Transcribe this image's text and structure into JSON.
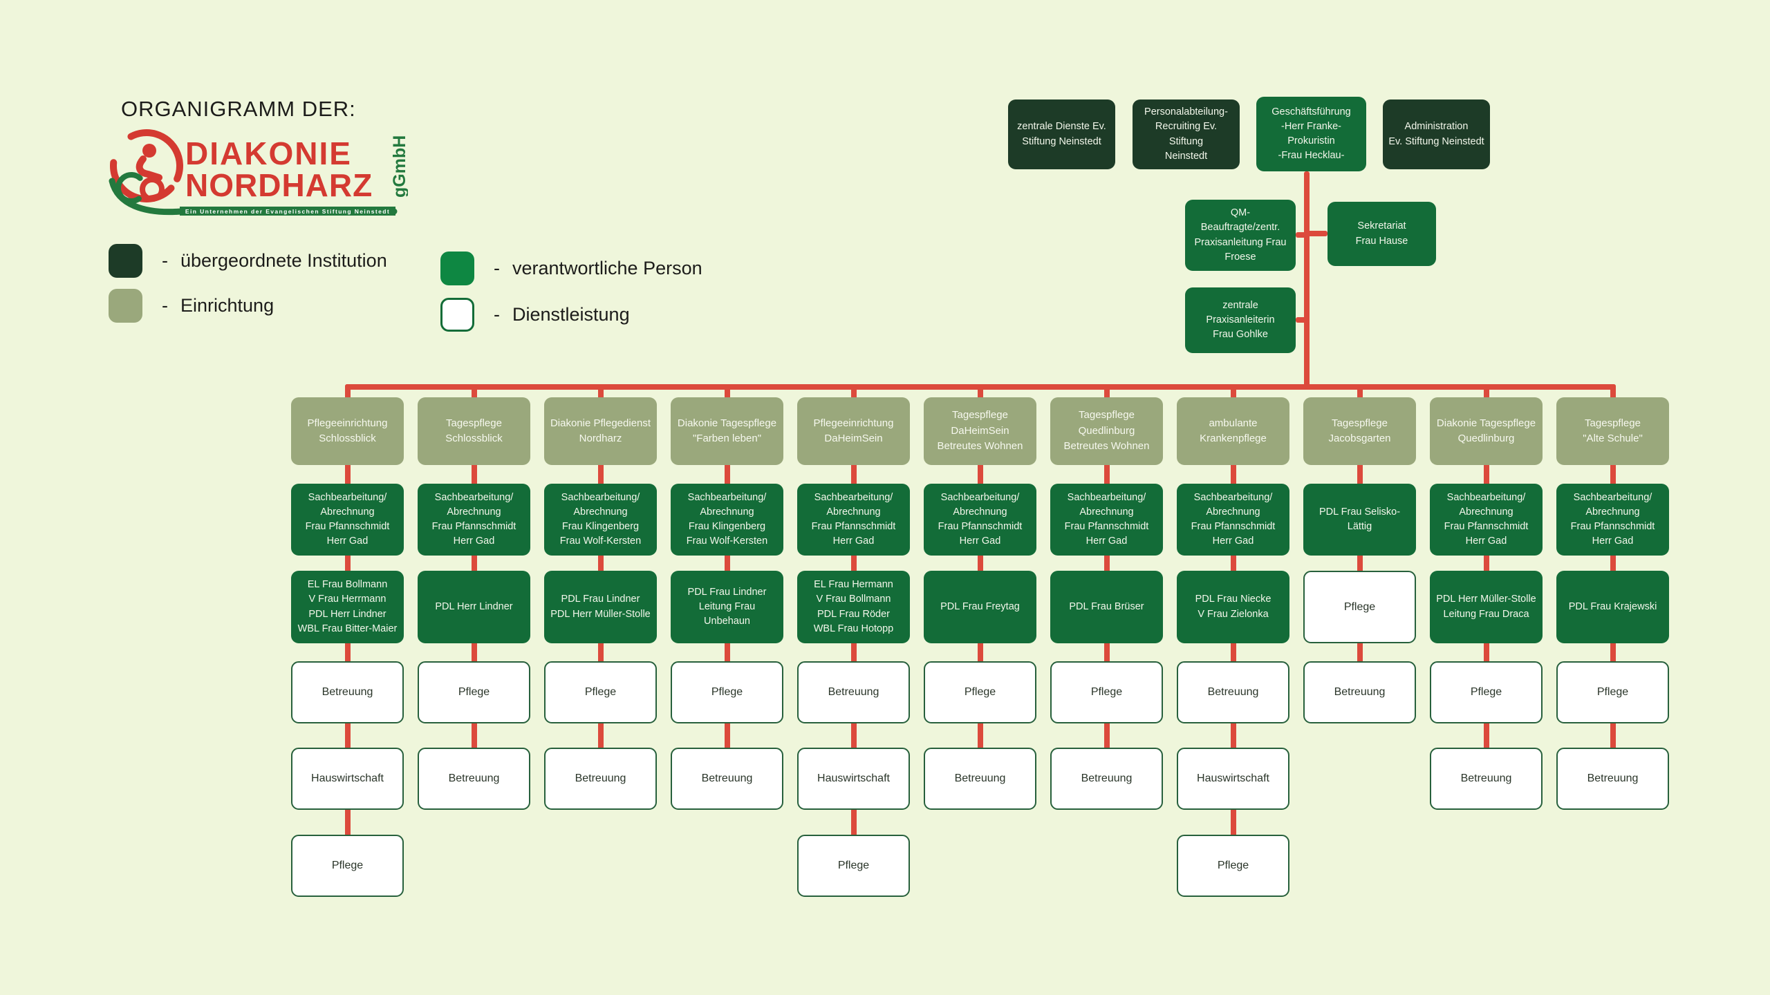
{
  "colors": {
    "background": "#eff6db",
    "institution_green": "#1d3b27",
    "person_green": "#136c38",
    "legend_person_green": "#0e8742",
    "einrichtung_olive": "#9aa87c",
    "service_border_green": "#27603c",
    "connector_red": "#dc4a3c",
    "logo_red": "#d43a31",
    "logo_green": "#23793e"
  },
  "page": {
    "title": "ORGANIGRAMM DER:"
  },
  "logo": {
    "line1": "DIAKONIE",
    "line2": "NORDHARZ",
    "suffix": "gGmbH",
    "tagline": "Ein Unternehmen der Evangelischen Stiftung Neinstedt"
  },
  "legend": {
    "separator": "-",
    "items": [
      {
        "label": "übergeordnete Institution",
        "type": "institution"
      },
      {
        "label": "Einrichtung",
        "type": "einrichtung"
      },
      {
        "label": "verantwortliche Person",
        "type": "person"
      },
      {
        "label": "Dienstleistung",
        "type": "service"
      }
    ]
  },
  "top_row": [
    {
      "label": "zentrale Dienste Ev.\nStiftung Neinstedt",
      "type": "institution"
    },
    {
      "label": "Personalabteilung-\nRecruiting Ev. Stiftung\nNeinstedt",
      "type": "institution"
    },
    {
      "label": "Geschäftsführung\n-Herr Franke-\nProkuristin\n-Frau Hecklau-",
      "type": "person-bright"
    },
    {
      "label": "Administration\nEv. Stiftung Neinstedt",
      "type": "institution"
    }
  ],
  "middle": {
    "qm": "QM- Beauftragte/zentr.\nPraxisanleitung Frau\nFroese",
    "sekretariat": "Sekretariat\nFrau Hause",
    "praxisanleiterin": "zentrale Praxisanleiterin\nFrau Gohlke"
  },
  "columns": [
    {
      "header": "Pflegeeinrichtung\nSchlossblick",
      "boxes": [
        {
          "slot": 2,
          "type": "person",
          "label": "Sachbearbeitung/\nAbrechnung\nFrau Pfannschmidt\nHerr Gad"
        },
        {
          "slot": 3,
          "type": "person",
          "label": "EL Frau Bollmann\nV Frau Herrmann\nPDL Herr Lindner\nWBL Frau Bitter-Maier"
        },
        {
          "slot": 4,
          "type": "service",
          "label": "Betreuung"
        },
        {
          "slot": 5,
          "type": "service",
          "label": "Hauswirtschaft"
        },
        {
          "slot": 6,
          "type": "service",
          "label": "Pflege"
        }
      ]
    },
    {
      "header": "Tagespflege\nSchlossblick",
      "boxes": [
        {
          "slot": 2,
          "type": "person",
          "label": "Sachbearbeitung/\nAbrechnung\nFrau Pfannschmidt\nHerr Gad"
        },
        {
          "slot": 3,
          "type": "person",
          "label": "PDL Herr Lindner"
        },
        {
          "slot": 4,
          "type": "service",
          "label": "Pflege"
        },
        {
          "slot": 5,
          "type": "service",
          "label": "Betreuung"
        }
      ]
    },
    {
      "header": "Diakonie Pflegedienst\nNordharz",
      "boxes": [
        {
          "slot": 2,
          "type": "person",
          "label": "Sachbearbeitung/\nAbrechnung\nFrau Klingenberg\nFrau Wolf-Kersten"
        },
        {
          "slot": 3,
          "type": "person",
          "label": "PDL Frau Lindner\nPDL Herr Müller-Stolle"
        },
        {
          "slot": 4,
          "type": "service",
          "label": "Pflege"
        },
        {
          "slot": 5,
          "type": "service",
          "label": "Betreuung"
        }
      ]
    },
    {
      "header": "Diakonie Tagespflege\n\"Farben leben\"",
      "boxes": [
        {
          "slot": 2,
          "type": "person",
          "label": "Sachbearbeitung/\nAbrechnung\nFrau Klingenberg\nFrau Wolf-Kersten"
        },
        {
          "slot": 3,
          "type": "person",
          "label": "PDL Frau Lindner\nLeitung Frau Unbehaun"
        },
        {
          "slot": 4,
          "type": "service",
          "label": "Pflege"
        },
        {
          "slot": 5,
          "type": "service",
          "label": "Betreuung"
        }
      ]
    },
    {
      "header": "Pflegeeinrichtung\nDaHeimSein",
      "boxes": [
        {
          "slot": 2,
          "type": "person",
          "label": "Sachbearbeitung/\nAbrechnung\nFrau Pfannschmidt\nHerr Gad"
        },
        {
          "slot": 3,
          "type": "person",
          "label": "EL Frau Hermann\nV Frau Bollmann\nPDL Frau Röder\nWBL Frau Hotopp"
        },
        {
          "slot": 4,
          "type": "service",
          "label": "Betreuung"
        },
        {
          "slot": 5,
          "type": "service",
          "label": "Hauswirtschaft"
        },
        {
          "slot": 6,
          "type": "service",
          "label": "Pflege"
        }
      ]
    },
    {
      "header": "Tagespflege\nDaHeimSein\nBetreutes Wohnen",
      "boxes": [
        {
          "slot": 2,
          "type": "person",
          "label": "Sachbearbeitung/\nAbrechnung\nFrau Pfannschmidt\nHerr Gad"
        },
        {
          "slot": 3,
          "type": "person",
          "label": "PDL Frau Freytag"
        },
        {
          "slot": 4,
          "type": "service",
          "label": "Pflege"
        },
        {
          "slot": 5,
          "type": "service",
          "label": "Betreuung"
        }
      ]
    },
    {
      "header": "Tagespflege\nQuedlinburg\nBetreutes Wohnen",
      "boxes": [
        {
          "slot": 2,
          "type": "person",
          "label": "Sachbearbeitung/\nAbrechnung\nFrau Pfannschmidt\nHerr Gad"
        },
        {
          "slot": 3,
          "type": "person",
          "label": "PDL Frau Brüser"
        },
        {
          "slot": 4,
          "type": "service",
          "label": "Pflege"
        },
        {
          "slot": 5,
          "type": "service",
          "label": "Betreuung"
        }
      ]
    },
    {
      "header": "ambulante\nKrankenpflege",
      "boxes": [
        {
          "slot": 2,
          "type": "person",
          "label": "Sachbearbeitung/\nAbrechnung\nFrau Pfannschmidt\nHerr Gad"
        },
        {
          "slot": 3,
          "type": "person",
          "label": "PDL Frau Niecke\nV Frau Zielonka"
        },
        {
          "slot": 4,
          "type": "service",
          "label": "Betreuung"
        },
        {
          "slot": 5,
          "type": "service",
          "label": "Hauswirtschaft"
        },
        {
          "slot": 6,
          "type": "service",
          "label": "Pflege"
        }
      ]
    },
    {
      "header": "Tagespflege\nJacobsgarten",
      "boxes": [
        {
          "slot": 2,
          "type": "person",
          "label": "PDL Frau Selisko-Lättig"
        },
        {
          "slot": 3,
          "type": "service",
          "label": "Pflege"
        },
        {
          "slot": 4,
          "type": "service",
          "label": "Betreuung"
        }
      ]
    },
    {
      "header": "Diakonie Tagespflege\nQuedlinburg",
      "boxes": [
        {
          "slot": 2,
          "type": "person",
          "label": "Sachbearbeitung/\nAbrechnung\nFrau Pfannschmidt\nHerr Gad"
        },
        {
          "slot": 3,
          "type": "person",
          "label": "PDL Herr Müller-Stolle\nLeitung Frau Draca"
        },
        {
          "slot": 4,
          "type": "service",
          "label": "Pflege"
        },
        {
          "slot": 5,
          "type": "service",
          "label": "Betreuung"
        }
      ]
    },
    {
      "header": "Tagespflege\n\"Alte Schule\"",
      "boxes": [
        {
          "slot": 2,
          "type": "person",
          "label": "Sachbearbeitung/\nAbrechnung\nFrau Pfannschmidt\nHerr Gad"
        },
        {
          "slot": 3,
          "type": "person",
          "label": "PDL Frau Krajewski"
        },
        {
          "slot": 4,
          "type": "service",
          "label": "Pflege"
        },
        {
          "slot": 5,
          "type": "service",
          "label": "Betreuung"
        }
      ]
    }
  ]
}
